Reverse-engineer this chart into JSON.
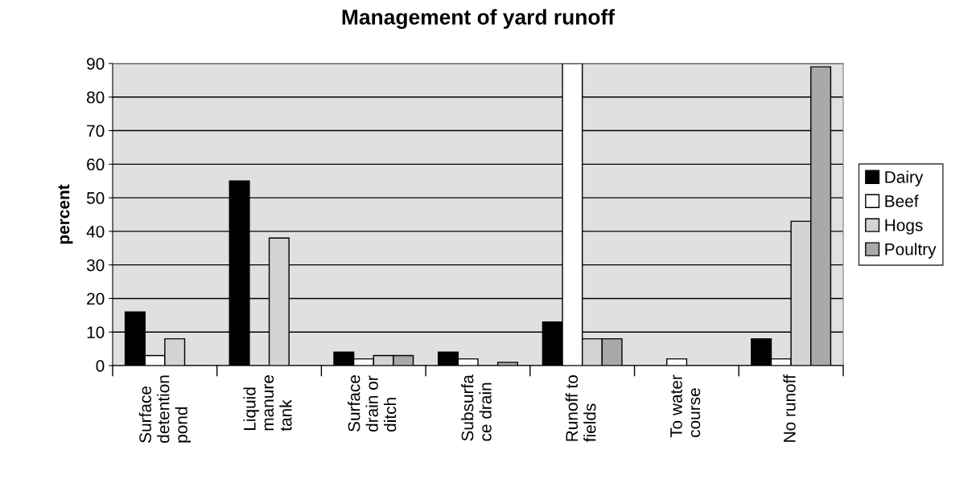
{
  "chart_data": {
    "type": "bar",
    "title": "Management of yard runoff",
    "ylabel": "percent",
    "categories": [
      "Surface\ndetention\npond",
      "Liquid\nmanure\ntank",
      "Surface\ndrain or\nditch",
      "Subsurfa\nce drain",
      "Runoff to\nfields",
      "To water\ncourse",
      "No runoff"
    ],
    "series": [
      {
        "name": "Dairy",
        "color": "#000000",
        "values": [
          16,
          55,
          4,
          4,
          13,
          null,
          8
        ]
      },
      {
        "name": "Beef",
        "color": "#ffffff",
        "values": [
          3,
          null,
          2,
          2,
          90,
          2,
          2
        ]
      },
      {
        "name": "Hogs",
        "color": "#d3d3d3",
        "values": [
          8,
          38,
          3,
          null,
          8,
          null,
          43
        ]
      },
      {
        "name": "Poultry",
        "color": "#a9a9a9",
        "values": [
          null,
          null,
          3,
          1,
          8,
          null,
          89
        ]
      }
    ],
    "ylim": [
      0,
      90
    ],
    "yticks": [
      0,
      10,
      20,
      30,
      40,
      50,
      60,
      70,
      80,
      90
    ],
    "grid": "y",
    "legend": "right"
  }
}
